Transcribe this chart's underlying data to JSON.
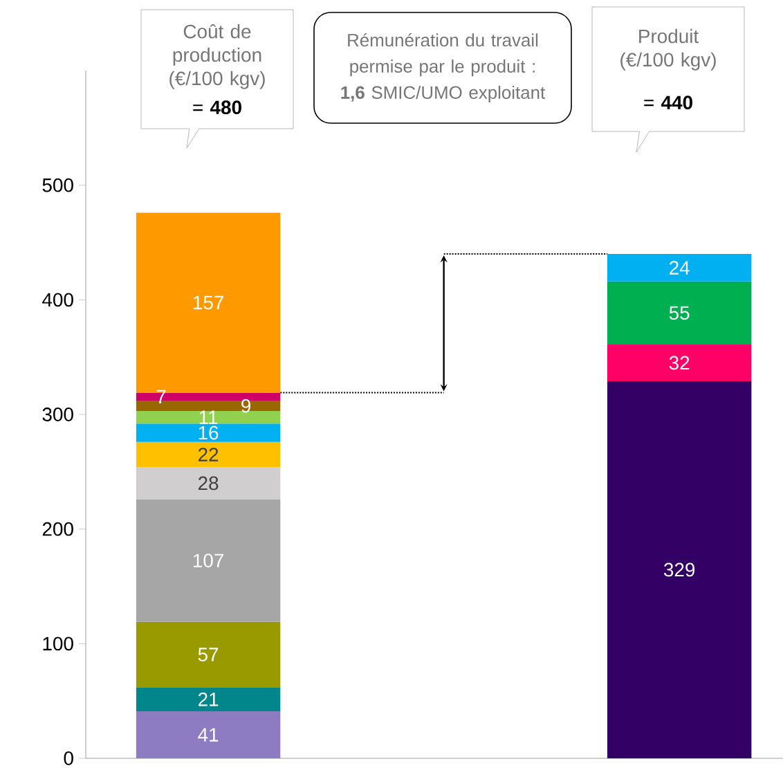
{
  "chart_data": {
    "type": "bar",
    "stacked": true,
    "data_labels": true,
    "tick_labels": "y",
    "categories": [
      null,
      null
    ],
    "ylim": [
      0,
      600
    ],
    "yticks": [
      0,
      100,
      200,
      300,
      400,
      500
    ],
    "annotations": [
      "Coût de production (€/100 kgv)",
      "= **480**",
      "Rémunération du travail permise par le produit : **1,6** SMIC/UMO exploitant",
      "Produit (€/100 kgv)",
      "= **440**"
    ],
    "series": [
      {
        "color": "#8e7cc3",
        "values": [
          41,
          null
        ]
      },
      {
        "color": "#00868b",
        "values": [
          21,
          null
        ]
      },
      {
        "color": "#999900",
        "values": [
          57,
          null
        ]
      },
      {
        "color": "#a6a6a6",
        "values": [
          107,
          null
        ]
      },
      {
        "color": "#d0cece",
        "values": [
          28,
          null
        ]
      },
      {
        "color": "#ffc000",
        "values": [
          22,
          null
        ]
      },
      {
        "color": "#00b0f0",
        "values": [
          16,
          null
        ]
      },
      {
        "color": "#92d050",
        "values": [
          11,
          null
        ]
      },
      {
        "color": "#996600",
        "values": [
          9,
          null
        ]
      },
      {
        "color": "#cc0066",
        "values": [
          7,
          null
        ]
      },
      {
        "color": "#ff9900",
        "values": [
          157,
          null
        ]
      },
      {
        "color": "#330066",
        "values": [
          null,
          329
        ]
      },
      {
        "color": "#ff0066",
        "values": [
          null,
          32
        ]
      },
      {
        "color": "#00b050",
        "values": [
          null,
          55
        ]
      },
      {
        "color": "#00b0f0",
        "values": [
          null,
          24
        ]
      }
    ]
  }
}
